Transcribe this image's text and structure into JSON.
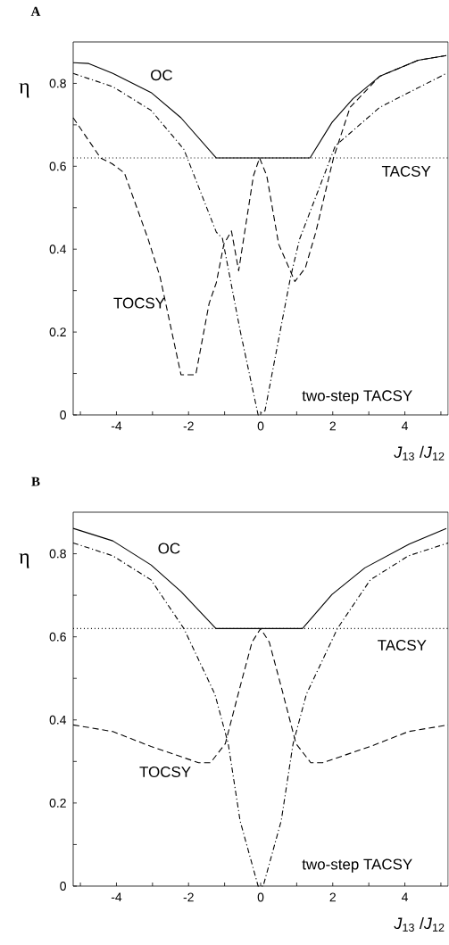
{
  "chart_data": [
    {
      "type": "line",
      "title": "A",
      "xlabel": "*J*$_{13}$ /*J*$_{12}$",
      "ylabel": "η",
      "xlim": [
        -5.2,
        5.2
      ],
      "ylim": [
        0,
        0.9
      ],
      "xticks": [
        {
          "value": -5,
          "label": null
        },
        -4,
        {
          "value": -3,
          "label": null
        },
        -2,
        {
          "value": -1,
          "label": null
        },
        0,
        {
          "value": 1,
          "label": null
        },
        2,
        {
          "value": 3,
          "label": null
        },
        4,
        {
          "value": 5,
          "label": null
        }
      ],
      "yticks": [
        0,
        {
          "value": 0.1,
          "label": null
        },
        0.2,
        {
          "value": 0.3,
          "label": null
        },
        0.4,
        {
          "value": 0.5,
          "label": null
        },
        0.6,
        {
          "value": 0.7,
          "label": null
        },
        0.8
      ],
      "series": [
        {
          "name": "OC",
          "color": "#000000",
          "line_style": "solid",
          "x": [
            -5.2,
            -4.77,
            -4.1,
            -3.04,
            -2.21,
            -1.23,
            1.37,
            1.98,
            2.56,
            3.3,
            4.37,
            5.15
          ],
          "values": [
            0.85,
            0.848,
            0.824,
            0.778,
            0.717,
            0.62,
            0.62,
            0.706,
            0.763,
            0.817,
            0.856,
            0.867
          ]
        },
        {
          "name": "TACSY",
          "color": "#000000",
          "line_style": "dotted",
          "x": [
            -5.2,
            5.2
          ],
          "values": [
            0.62,
            0.62
          ]
        },
        {
          "name": "TOCSY",
          "color": "#000000",
          "line_style": "dashed",
          "x": [
            -5.2,
            -4.44,
            -4.12,
            -3.78,
            -3.12,
            -2.79,
            -2.21,
            -1.8,
            -1.43,
            -1.23,
            -1.02,
            -0.81,
            -0.61,
            -0.2,
            -0.03,
            0.17,
            0.5,
            0.95,
            1.24,
            1.53,
            2.02,
            2.48,
            3.3,
            4.37,
            5.15
          ],
          "values": [
            0.717,
            0.62,
            0.606,
            0.584,
            0.424,
            0.333,
            0.097,
            0.097,
            0.269,
            0.319,
            0.412,
            0.444,
            0.348,
            0.577,
            0.62,
            0.577,
            0.412,
            0.322,
            0.355,
            0.441,
            0.62,
            0.742,
            0.817,
            0.856,
            0.867
          ]
        },
        {
          "name": "two-step TACSY",
          "color": "#000000",
          "line_style": "dashdot",
          "x": [
            -5.2,
            -4.1,
            -3.04,
            -2.13,
            -1.23,
            -1.06,
            -0.57,
            -0.07,
            0.12,
            0.83,
            1.08,
            2.07,
            3.3,
            5.15
          ],
          "values": [
            0.824,
            0.792,
            0.735,
            0.641,
            0.441,
            0.426,
            0.204,
            0,
            0.01,
            0.333,
            0.424,
            0.649,
            0.742,
            0.824
          ]
        }
      ]
    },
    {
      "type": "line",
      "title": "B",
      "xlabel": "*J*$_{13}$ /*J*$_{12}$",
      "ylabel": "η",
      "xlim": [
        -5.2,
        5.2
      ],
      "ylim": [
        0,
        0.9
      ],
      "xticks": [
        {
          "value": -5,
          "label": null
        },
        -4,
        {
          "value": -3,
          "label": null
        },
        -2,
        {
          "value": -1,
          "label": null
        },
        0,
        {
          "value": 1,
          "label": null
        },
        2,
        {
          "value": 3,
          "label": null
        },
        4,
        {
          "value": 5,
          "label": null
        }
      ],
      "yticks": [
        0,
        {
          "value": 0.1,
          "label": null
        },
        0.2,
        {
          "value": 0.3,
          "label": null
        },
        0.4,
        {
          "value": 0.5,
          "label": null
        },
        0.6,
        {
          "value": 0.7,
          "label": null
        },
        0.8
      ],
      "series": [
        {
          "name": "OC",
          "color": "#000000",
          "line_style": "solid",
          "x": [
            -5.2,
            -4.1,
            -3.04,
            -2.21,
            -1.24,
            1.16,
            1.98,
            2.89,
            4.12,
            5.15
          ],
          "values": [
            0.861,
            0.831,
            0.773,
            0.709,
            0.62,
            0.62,
            0.702,
            0.766,
            0.823,
            0.861
          ]
        },
        {
          "name": "TACSY",
          "color": "#000000",
          "line_style": "dotted",
          "x": [
            -5.2,
            5.2
          ],
          "values": [
            0.62,
            0.62
          ]
        },
        {
          "name": "TOCSY",
          "color": "#000000",
          "line_style": "dashed",
          "x": [
            -5.2,
            -4.1,
            -3.04,
            -1.72,
            -1.39,
            -0.98,
            -0.57,
            -0.24,
            0,
            0.24,
            0.57,
            0.98,
            1.39,
            1.72,
            3.04,
            4.1,
            5.2
          ],
          "values": [
            0.388,
            0.372,
            0.336,
            0.297,
            0.297,
            0.343,
            0.48,
            0.587,
            0.62,
            0.587,
            0.48,
            0.343,
            0.297,
            0.297,
            0.336,
            0.372,
            0.388
          ]
        },
        {
          "name": "two-step TACSY",
          "color": "#000000",
          "line_style": "dashdot",
          "x": [
            -5.2,
            -4.1,
            -3.04,
            -2.13,
            -1.27,
            -0.9,
            -0.57,
            -0.07,
            0.07,
            0.57,
            0.9,
            1.27,
            2.13,
            3.04,
            4.1,
            5.2
          ],
          "values": [
            0.826,
            0.795,
            0.737,
            0.62,
            0.462,
            0.343,
            0.157,
            0,
            0,
            0.157,
            0.343,
            0.462,
            0.62,
            0.737,
            0.795,
            0.826
          ]
        }
      ]
    }
  ]
}
